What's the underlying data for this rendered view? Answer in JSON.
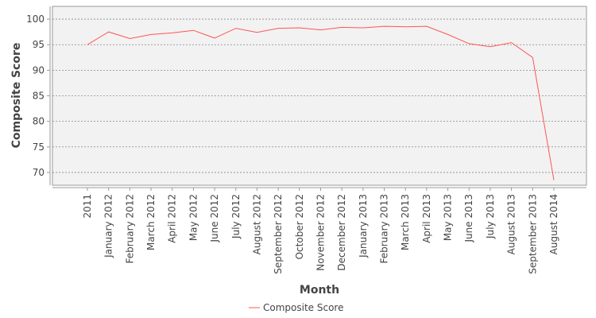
{
  "chart_data": {
    "type": "line",
    "title": "",
    "xlabel": "Month",
    "ylabel": "Composite Score",
    "categories": [
      "2011",
      "January 2012",
      "February 2012",
      "March 2012",
      "April 2012",
      "May 2012",
      "June 2012",
      "July 2012",
      "August 2012",
      "September 2012",
      "October 2012",
      "November 2012",
      "December 2012",
      "January 2013",
      "February 2013",
      "March 2013",
      "April 2013",
      "May 2013",
      "June 2013",
      "July 2013",
      "August 2013",
      "September 2013",
      "August 2014"
    ],
    "series": [
      {
        "name": "Composite Score",
        "color": "#ff5555",
        "values": [
          95.0,
          97.5,
          96.2,
          97.0,
          97.3,
          97.8,
          96.3,
          98.2,
          97.4,
          98.2,
          98.3,
          97.9,
          98.4,
          98.3,
          98.6,
          98.5,
          98.6,
          97.0,
          95.2,
          94.6,
          95.4,
          92.5,
          68.5
        ]
      }
    ],
    "ylim": [
      67.5,
      102.5
    ],
    "yticks": [
      70,
      75,
      80,
      85,
      90,
      95,
      100
    ],
    "grid": true,
    "legend_position": "bottom"
  }
}
